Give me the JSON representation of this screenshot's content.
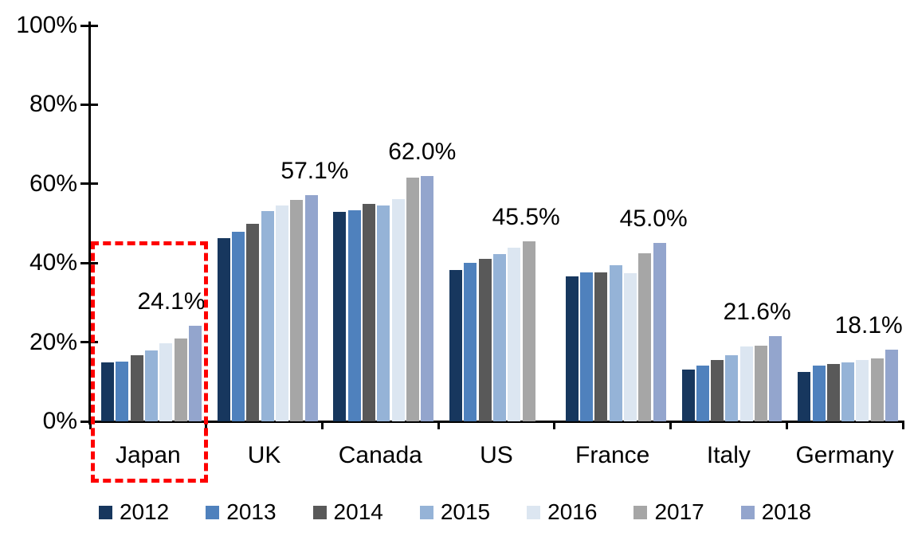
{
  "chart_data": {
    "type": "bar",
    "title": "",
    "xlabel": "",
    "ylabel": "",
    "ylim": [
      0,
      100
    ],
    "grid": false,
    "legend_position": "bottom",
    "ytick_values": [
      0,
      20,
      40,
      60,
      80,
      100
    ],
    "ytick_labels": [
      "0%",
      "20%",
      "40%",
      "60%",
      "80%",
      "100%"
    ],
    "categories": [
      "Japan",
      "UK",
      "Canada",
      "US",
      "France",
      "Italy",
      "Germany"
    ],
    "series": [
      {
        "name": "2012",
        "color": "#17375E",
        "values": [
          14.8,
          46.3,
          53.0,
          38.3,
          36.7,
          13.1,
          12.4
        ]
      },
      {
        "name": "2013",
        "color": "#4F81BD",
        "values": [
          15.0,
          47.8,
          53.3,
          40.1,
          37.7,
          14.1,
          14.0
        ]
      },
      {
        "name": "2014",
        "color": "#595959",
        "values": [
          16.6,
          49.8,
          54.9,
          41.1,
          37.6,
          15.4,
          14.4
        ]
      },
      {
        "name": "2015",
        "color": "#95B3D7",
        "values": [
          17.9,
          53.2,
          54.6,
          42.2,
          39.4,
          16.8,
          14.9
        ]
      },
      {
        "name": "2016",
        "color": "#DCE6F1",
        "values": [
          19.8,
          54.6,
          56.1,
          43.8,
          37.4,
          19.0,
          15.5
        ]
      },
      {
        "name": "2017",
        "color": "#A6A6A6",
        "values": [
          20.9,
          55.9,
          61.5,
          45.5,
          42.4,
          19.2,
          15.9
        ]
      },
      {
        "name": "2018",
        "color": "#93A5CD",
        "values": [
          24.1,
          57.1,
          62.0,
          null,
          45.0,
          21.6,
          18.1
        ]
      }
    ],
    "annotations": [
      {
        "category": "Japan",
        "text": "24.1%",
        "value": 24.1
      },
      {
        "category": "UK",
        "text": "57.1%",
        "value": 57.1
      },
      {
        "category": "Canada",
        "text": "62.0%",
        "value": 62.0
      },
      {
        "category": "US",
        "text": "45.5%",
        "value": 45.5
      },
      {
        "category": "France",
        "text": "45.0%",
        "value": 45.0
      },
      {
        "category": "Italy",
        "text": "21.6%",
        "value": 21.6
      },
      {
        "category": "Germany",
        "text": "18.1%",
        "value": 18.1
      }
    ],
    "highlight": {
      "target_category": "Japan",
      "style": "dashed-rectangle",
      "color": "#FE0000"
    },
    "axis_color": "#000000",
    "text_color": "#000000"
  }
}
